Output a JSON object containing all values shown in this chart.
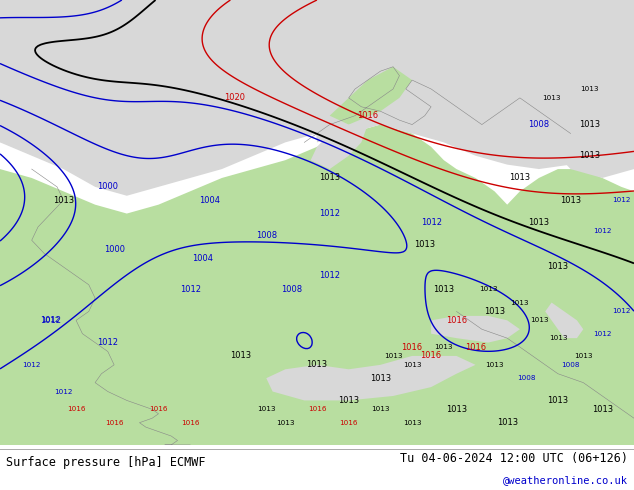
{
  "title_left": "Surface pressure [hPa] ECMWF",
  "title_right": "Tu 04-06-2024 12:00 UTC (06+126)",
  "credit": "@weatheronline.co.uk",
  "bg_ocean": "#d8d8d8",
  "bg_land": "#b8dea0",
  "text_color_black": "#000000",
  "text_color_blue": "#0000cc",
  "text_color_red": "#cc0000",
  "isobar_blue": "#0000cc",
  "isobar_black": "#000000",
  "isobar_red": "#cc0000",
  "fig_width": 6.34,
  "fig_height": 4.9,
  "dpi": 100
}
